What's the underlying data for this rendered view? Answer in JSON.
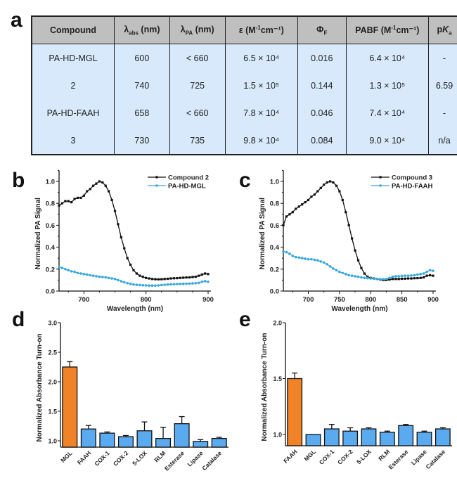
{
  "panels": {
    "a": "a",
    "b": "b",
    "c": "c",
    "d": "d",
    "e": "e"
  },
  "table": {
    "headers": [
      {
        "main": "Compound",
        "sub": "",
        "sup": "",
        "after": ""
      },
      {
        "main": "λ",
        "sub": "abs",
        "sup": "",
        "after": " (nm)"
      },
      {
        "main": "λ",
        "sub": "PA",
        "sup": "",
        "after": " (nm)"
      },
      {
        "main": "ε (M",
        "sub": "",
        "sup": "-1",
        "after": "cm⁻¹)"
      },
      {
        "main": "Φ",
        "sub": "F",
        "sup": "",
        "after": ""
      },
      {
        "main": "PABF (M",
        "sub": "",
        "sup": "-1",
        "after": "cm⁻¹)"
      },
      {
        "main": "p",
        "sub": "a",
        "sup": "",
        "after": "",
        "italic": "K"
      }
    ],
    "rows": [
      [
        "PA-HD-MGL",
        "600",
        "< 660",
        "6.5 × 10⁴",
        "0.016",
        "6.4 × 10⁴",
        "-"
      ],
      [
        "2",
        "740",
        "725",
        "1.5 × 10⁵",
        "0.144",
        "1.3 × 10⁵",
        "6.59"
      ],
      [
        "PA-HD-FAAH",
        "658",
        "< 660",
        "7.8 × 10⁴",
        "0.046",
        "7.4 × 10⁴",
        "-"
      ],
      [
        "3",
        "730",
        "735",
        "9.8 × 10⁴",
        "0.084",
        "9.0 × 10⁴",
        "n/a"
      ]
    ]
  },
  "chart_data": [
    {
      "id": "b",
      "type": "line",
      "xlabel": "Wavelength (nm)",
      "ylabel": "Normalized PA Signal",
      "xlim": [
        660,
        900
      ],
      "ylim": [
        0,
        1.1
      ],
      "xticks": [
        700,
        800,
        900
      ],
      "yticks": [
        0.0,
        0.2,
        0.4,
        0.6,
        0.8,
        1.0
      ],
      "legend": "top-right",
      "grid": false,
      "x": [
        660,
        665,
        670,
        675,
        680,
        685,
        690,
        695,
        700,
        705,
        710,
        715,
        720,
        725,
        730,
        735,
        740,
        745,
        750,
        755,
        760,
        765,
        770,
        775,
        780,
        785,
        790,
        795,
        800,
        805,
        810,
        815,
        820,
        825,
        830,
        835,
        840,
        845,
        850,
        855,
        860,
        865,
        870,
        875,
        880,
        885,
        890,
        895,
        900
      ],
      "series": [
        {
          "name": "Compound 2",
          "color": "#111111",
          "marker": "square",
          "values": [
            0.78,
            0.8,
            0.82,
            0.82,
            0.81,
            0.84,
            0.85,
            0.85,
            0.87,
            0.91,
            0.93,
            0.96,
            0.98,
            1.0,
            0.99,
            0.96,
            0.91,
            0.83,
            0.73,
            0.61,
            0.49,
            0.39,
            0.3,
            0.24,
            0.19,
            0.16,
            0.14,
            0.13,
            0.12,
            0.115,
            0.11,
            0.108,
            0.107,
            0.108,
            0.11,
            0.112,
            0.115,
            0.117,
            0.118,
            0.12,
            0.122,
            0.124,
            0.125,
            0.128,
            0.13,
            0.14,
            0.15,
            0.16,
            0.155
          ]
        },
        {
          "name": "PA-HD-MGL",
          "color": "#3aa8dd",
          "marker": "circle",
          "values": [
            0.22,
            0.21,
            0.2,
            0.19,
            0.18,
            0.175,
            0.165,
            0.16,
            0.155,
            0.15,
            0.145,
            0.14,
            0.135,
            0.13,
            0.128,
            0.125,
            0.12,
            0.115,
            0.11,
            0.1,
            0.09,
            0.08,
            0.072,
            0.065,
            0.06,
            0.057,
            0.055,
            0.053,
            0.052,
            0.05,
            0.05,
            0.05,
            0.052,
            0.055,
            0.057,
            0.06,
            0.062,
            0.063,
            0.064,
            0.065,
            0.066,
            0.067,
            0.068,
            0.07,
            0.072,
            0.075,
            0.085,
            0.09,
            0.085
          ]
        }
      ]
    },
    {
      "id": "c",
      "type": "line",
      "xlabel": "Wavelength (nm)",
      "ylabel": "Normalized PA Signal",
      "xlim": [
        660,
        900
      ],
      "ylim": [
        0,
        1.1
      ],
      "xticks": [
        700,
        750,
        800,
        850,
        900
      ],
      "yticks": [
        0.0,
        0.2,
        0.4,
        0.6,
        0.8,
        1.0
      ],
      "legend": "top-right",
      "grid": false,
      "x": [
        660,
        665,
        670,
        675,
        680,
        685,
        690,
        695,
        700,
        705,
        710,
        715,
        720,
        725,
        730,
        735,
        740,
        745,
        750,
        755,
        760,
        765,
        770,
        775,
        780,
        785,
        790,
        795,
        800,
        805,
        810,
        815,
        820,
        825,
        830,
        835,
        840,
        845,
        850,
        855,
        860,
        865,
        870,
        875,
        880,
        885,
        890,
        895,
        900
      ],
      "series": [
        {
          "name": "Compound 3",
          "color": "#111111",
          "marker": "square",
          "values": [
            0.6,
            0.68,
            0.7,
            0.72,
            0.75,
            0.77,
            0.79,
            0.81,
            0.83,
            0.86,
            0.88,
            0.91,
            0.94,
            0.97,
            0.99,
            1.0,
            0.99,
            0.96,
            0.91,
            0.83,
            0.72,
            0.6,
            0.48,
            0.37,
            0.28,
            0.21,
            0.16,
            0.13,
            0.12,
            0.115,
            0.11,
            0.105,
            0.1,
            0.1,
            0.105,
            0.11,
            0.11,
            0.11,
            0.112,
            0.113,
            0.115,
            0.115,
            0.117,
            0.118,
            0.12,
            0.125,
            0.14,
            0.145,
            0.14
          ]
        },
        {
          "name": "PA-HD-FAAH",
          "color": "#3aa8dd",
          "marker": "circle",
          "values": [
            0.36,
            0.355,
            0.34,
            0.32,
            0.31,
            0.305,
            0.3,
            0.295,
            0.29,
            0.29,
            0.285,
            0.28,
            0.27,
            0.26,
            0.245,
            0.225,
            0.205,
            0.19,
            0.175,
            0.165,
            0.155,
            0.145,
            0.14,
            0.135,
            0.13,
            0.125,
            0.12,
            0.118,
            0.115,
            0.112,
            0.11,
            0.108,
            0.108,
            0.11,
            0.12,
            0.13,
            0.135,
            0.135,
            0.138,
            0.14,
            0.14,
            0.142,
            0.145,
            0.15,
            0.155,
            0.16,
            0.175,
            0.19,
            0.185
          ]
        }
      ]
    },
    {
      "id": "d",
      "type": "bar",
      "ylabel": "Normalized Absorbance Turn-on",
      "xlabel": "",
      "ylim": [
        0.9,
        3.0
      ],
      "yticks": [
        1.0,
        1.5,
        2.0,
        2.5,
        3.0
      ],
      "categories": [
        "MGL",
        "FAAH",
        "COX-1",
        "COX-2",
        "5-LOX",
        "RLM",
        "Esterase",
        "Lipase",
        "Catalase"
      ],
      "values": [
        2.25,
        1.2,
        1.13,
        1.07,
        1.17,
        1.04,
        1.29,
        0.99,
        1.04
      ],
      "errors": [
        0.09,
        0.06,
        0.02,
        0.02,
        0.15,
        0.19,
        0.12,
        0.03,
        0.02
      ],
      "colors": [
        "#f08228",
        "#5aaaf0",
        "#5aaaf0",
        "#5aaaf0",
        "#5aaaf0",
        "#5aaaf0",
        "#5aaaf0",
        "#5aaaf0",
        "#5aaaf0"
      ]
    },
    {
      "id": "e",
      "type": "bar",
      "ylabel": "Normalized Absorbance Turn-on",
      "xlabel": "",
      "ylim": [
        0.9,
        2.0
      ],
      "yticks": [
        1.0,
        1.5,
        2.0
      ],
      "categories": [
        "FAAH",
        "MGL",
        "COX-1",
        "COX-2",
        "5-LOX",
        "RLM",
        "Esterase",
        "Lipase",
        "Catalase"
      ],
      "values": [
        1.5,
        1.0,
        1.05,
        1.03,
        1.05,
        1.02,
        1.08,
        1.02,
        1.05
      ],
      "errors": [
        0.05,
        0.0,
        0.04,
        0.03,
        0.01,
        0.01,
        0.01,
        0.01,
        0.01
      ],
      "colors": [
        "#f08228",
        "#5aaaf0",
        "#5aaaf0",
        "#5aaaf0",
        "#5aaaf0",
        "#5aaaf0",
        "#5aaaf0",
        "#5aaaf0",
        "#5aaaf0"
      ]
    }
  ]
}
